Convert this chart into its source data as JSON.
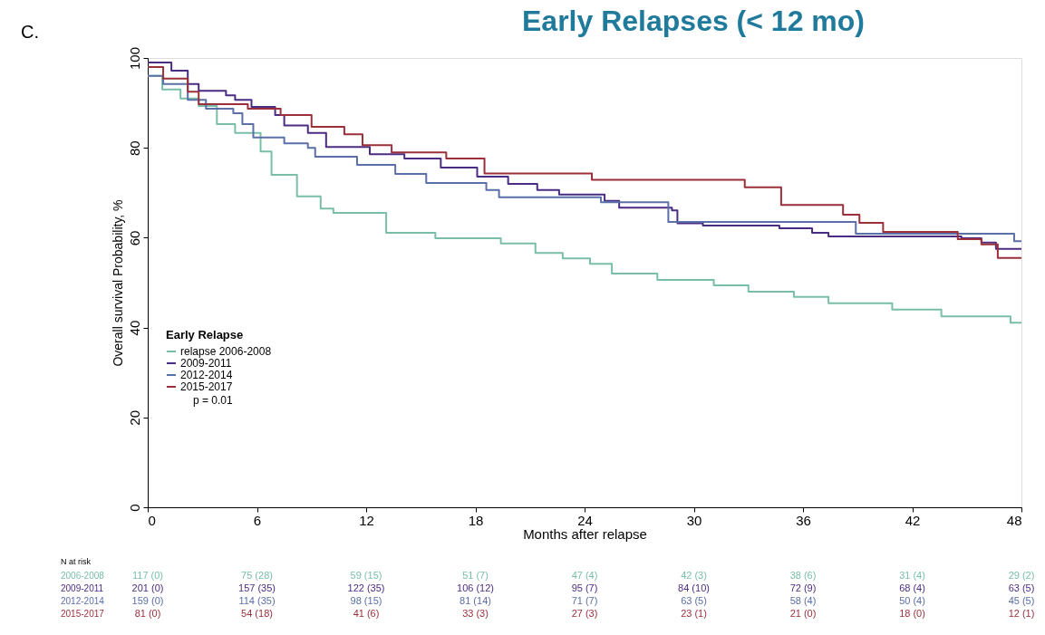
{
  "chart_data": {
    "type": "step",
    "title": "Early Relapses (< 12 mo)",
    "xlabel": "Months after relapse",
    "ylabel": "Overall survival Probability, %",
    "legend_title": "Early Relapse",
    "xlim": [
      0,
      48
    ],
    "xticks": [
      0,
      6,
      12,
      18,
      24,
      30,
      36,
      42,
      48
    ],
    "ylim": [
      0,
      100
    ],
    "yticks": [
      0,
      20,
      40,
      60,
      80,
      100
    ],
    "grid": false,
    "legend": "left",
    "marker": "none",
    "line_style": "solid",
    "series": [
      {
        "name": "relapse 2006-2008",
        "color": "#79bfa8",
        "x": [
          0,
          0.8,
          1.8,
          2.8,
          3.8,
          4.8,
          6.2,
          6.8,
          8.2,
          9.5,
          10.2,
          13.1,
          15.8,
          19.4,
          21.3,
          22.8,
          24.3,
          25.5,
          28,
          31.1,
          33,
          35.5,
          37.4,
          40.9,
          43.6,
          47.4,
          48
        ],
        "values": [
          96,
          93,
          91,
          89.3,
          85.3,
          83.3,
          79.2,
          74,
          69.2,
          66.5,
          65.5,
          61.1,
          59.9,
          58.7,
          56.6,
          55.4,
          54.2,
          52,
          50.6,
          49.4,
          48,
          46.8,
          45.4,
          44,
          42.5,
          41.1,
          41.1
        ]
      },
      {
        "name": "2009-2011",
        "color": "#4b2c83",
        "x": [
          0,
          1.3,
          2.2,
          2.8,
          4.3,
          4.8,
          5.7,
          7,
          7.5,
          8.8,
          9.8,
          12.2,
          14.1,
          16.1,
          18.1,
          19.8,
          21.4,
          22.6,
          25.1,
          25.9,
          28.8,
          29.1,
          30.5,
          34.7,
          36.5,
          37.4,
          44.7,
          45.8,
          46.6,
          48
        ],
        "values": [
          99,
          97.2,
          94.2,
          92.7,
          91.7,
          90.7,
          89.1,
          87.3,
          85,
          83.3,
          80.2,
          78.6,
          77.6,
          75.6,
          73.6,
          72,
          70.6,
          69.6,
          68.2,
          66.7,
          66.1,
          63.2,
          62.7,
          62.1,
          61.1,
          60.3,
          59.9,
          58.9,
          57.5,
          57.5
        ]
      },
      {
        "name": "2012-2014",
        "color": "#5b6fa8",
        "x": [
          0,
          0.85,
          2.2,
          3.2,
          4.7,
          5.2,
          5.8,
          7.5,
          8.8,
          9.2,
          11.5,
          13.6,
          15.3,
          18.6,
          19.3,
          24.9,
          28.6,
          38.9,
          47.6,
          48
        ],
        "values": [
          96,
          94.2,
          90.7,
          88.7,
          87.7,
          85.3,
          82.3,
          81,
          80,
          78,
          76.2,
          74.2,
          72.2,
          70.6,
          69,
          67.9,
          63.5,
          60.9,
          59.2,
          59.2
        ]
      },
      {
        "name": "2015-2017",
        "color": "#9b2f3a",
        "x": [
          0,
          0.85,
          2.2,
          2.8,
          5.5,
          7.3,
          9,
          10.8,
          11.8,
          13.4,
          16.4,
          18.5,
          24.4,
          32.8,
          34.8,
          38.2,
          39.1,
          40.4,
          44.5,
          45.8,
          46.7,
          48
        ],
        "values": [
          98,
          95.4,
          92.5,
          89.7,
          88.7,
          87.3,
          84.7,
          83,
          80.6,
          79,
          77.6,
          74.3,
          72.9,
          71.2,
          67.3,
          65.1,
          63.3,
          61.3,
          59.7,
          58.5,
          55.5,
          55.5
        ]
      }
    ],
    "annotations": [
      "C.",
      "p =  0.01",
      "N at risk",
      "2006-2008",
      "117 (0)",
      "75 (28)",
      "59 (15)",
      "51 (7)",
      "47 (4)",
      "42 (3)",
      "38 (6)",
      "31 (4)",
      "29 (2)",
      "2009-2011",
      "201 (0)",
      "157 (35)",
      "122 (35)",
      "106 (12)",
      "95 (7)",
      "84 (10)",
      "72 (9)",
      "68 (4)",
      "63 (5)",
      "2012-2014",
      "159 (0)",
      "114 (35)",
      "98 (15)",
      "81 (14)",
      "71 (7)",
      "63 (5)",
      "58 (4)",
      "50 (4)",
      "45 (5)",
      "2015-2017",
      "81 (0)",
      "54 (18)",
      "41 (6)",
      "33 (3)",
      "27 (3)",
      "23 (1)",
      "21 (0)",
      "18 (0)",
      "12 (1)"
    ]
  }
}
